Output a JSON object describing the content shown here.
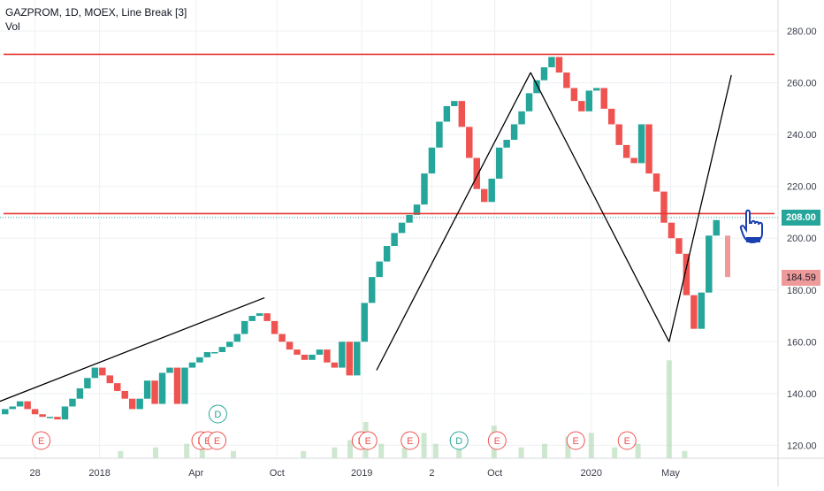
{
  "title": "GAZPROM, 1D, MOEX, Line Break [3]",
  "volume_label": "Vol",
  "price_tags": {
    "last": "208.00",
    "current": "184.59"
  },
  "colors": {
    "up": "#26a69a",
    "down": "#ef5350",
    "level": "#e53935",
    "trend": "#000000",
    "grid": "#eef0f3"
  },
  "chart_data": {
    "type": "line_break",
    "title": "GAZPROM, 1D, MOEX, Line Break [3]",
    "y_ticks": [
      120,
      140,
      160,
      180,
      200,
      220,
      240,
      260,
      280
    ],
    "y_tick_labels": [
      "120.00",
      "140.00",
      "160.00",
      "180.00",
      "200.00",
      "220.00",
      "240.00",
      "260.00",
      "280.00"
    ],
    "ylim": [
      115,
      292
    ],
    "x_tick_labels": [
      "28",
      "2018",
      "Apr",
      "Oct",
      "2019",
      "2",
      "Oct",
      "2020",
      "May"
    ],
    "x_ticks": [
      0.045,
      0.128,
      0.252,
      0.356,
      0.465,
      0.555,
      0.636,
      0.76,
      0.862
    ],
    "bricks": [
      [
        132,
        134
      ],
      [
        134,
        135
      ],
      [
        135,
        137
      ],
      [
        137,
        134
      ],
      [
        134,
        132
      ],
      [
        132,
        131
      ],
      [
        131,
        131
      ],
      [
        131,
        130
      ],
      [
        130,
        135
      ],
      [
        135,
        138
      ],
      [
        138,
        142
      ],
      [
        142,
        146
      ],
      [
        146,
        150
      ],
      [
        150,
        147
      ],
      [
        147,
        144
      ],
      [
        144,
        141
      ],
      [
        141,
        138
      ],
      [
        138,
        134
      ],
      [
        134,
        138
      ],
      [
        138,
        145
      ],
      [
        145,
        136
      ],
      [
        136,
        148
      ],
      [
        148,
        150
      ],
      [
        150,
        136
      ],
      [
        136,
        150
      ],
      [
        150,
        152
      ],
      [
        152,
        154
      ],
      [
        154,
        156
      ],
      [
        156,
        156
      ],
      [
        156,
        158
      ],
      [
        158,
        160
      ],
      [
        160,
        163
      ],
      [
        163,
        168
      ],
      [
        168,
        170
      ],
      [
        170,
        171
      ],
      [
        171,
        168
      ],
      [
        168,
        163
      ],
      [
        163,
        160
      ],
      [
        160,
        157
      ],
      [
        157,
        155
      ],
      [
        155,
        153
      ],
      [
        153,
        155
      ],
      [
        155,
        157
      ],
      [
        157,
        152
      ],
      [
        152,
        150
      ],
      [
        150,
        160
      ],
      [
        160,
        147
      ],
      [
        147,
        160
      ],
      [
        160,
        175
      ],
      [
        175,
        185
      ],
      [
        185,
        191
      ],
      [
        191,
        197
      ],
      [
        197,
        202
      ],
      [
        202,
        206
      ],
      [
        206,
        209
      ],
      [
        209,
        213
      ],
      [
        213,
        225
      ],
      [
        225,
        235
      ],
      [
        235,
        245
      ],
      [
        245,
        251
      ],
      [
        251,
        253
      ],
      [
        253,
        243
      ],
      [
        243,
        231
      ],
      [
        231,
        219
      ],
      [
        219,
        214
      ],
      [
        214,
        223
      ],
      [
        223,
        235
      ],
      [
        235,
        238
      ],
      [
        238,
        244
      ],
      [
        244,
        249
      ],
      [
        249,
        256
      ],
      [
        256,
        261
      ],
      [
        261,
        266
      ],
      [
        266,
        270
      ],
      [
        270,
        264
      ],
      [
        264,
        258
      ],
      [
        258,
        253
      ],
      [
        253,
        249
      ],
      [
        249,
        257
      ],
      [
        257,
        258
      ],
      [
        258,
        250
      ],
      [
        250,
        244
      ],
      [
        244,
        236
      ],
      [
        236,
        231
      ],
      [
        231,
        229
      ],
      [
        229,
        244
      ],
      [
        244,
        225
      ],
      [
        225,
        218
      ],
      [
        218,
        206
      ],
      [
        206,
        200
      ],
      [
        200,
        194
      ],
      [
        194,
        178
      ],
      [
        178,
        165
      ],
      [
        165,
        179
      ],
      [
        179,
        201
      ],
      [
        201,
        207
      ]
    ],
    "live_bar": [
      201,
      185
    ],
    "levels": [
      271,
      209.5
    ],
    "current_price": 208.0,
    "trend_lines": [
      [
        [
          0.0,
          137
        ],
        [
          0.34,
          177
        ]
      ],
      [
        [
          0.484,
          149
        ],
        [
          0.682,
          264
        ]
      ],
      [
        [
          0.682,
          264
        ],
        [
          0.86,
          160
        ]
      ],
      [
        [
          0.86,
          160
        ],
        [
          0.94,
          263
        ]
      ]
    ],
    "volume": [
      [
        0.155,
        2
      ],
      [
        0.2,
        3
      ],
      [
        0.24,
        4
      ],
      [
        0.26,
        3
      ],
      [
        0.3,
        2
      ],
      [
        0.39,
        2
      ],
      [
        0.43,
        3
      ],
      [
        0.45,
        5
      ],
      [
        0.47,
        10
      ],
      [
        0.49,
        4
      ],
      [
        0.52,
        3
      ],
      [
        0.545,
        7
      ],
      [
        0.56,
        4
      ],
      [
        0.59,
        3
      ],
      [
        0.635,
        9
      ],
      [
        0.67,
        3
      ],
      [
        0.7,
        4
      ],
      [
        0.73,
        6
      ],
      [
        0.76,
        7
      ],
      [
        0.79,
        3
      ],
      [
        0.82,
        4
      ],
      [
        0.86,
        27
      ],
      [
        0.88,
        2
      ]
    ],
    "events": [
      {
        "label": "E",
        "x": 0.053
      },
      {
        "label": "E",
        "x": 0.258
      },
      {
        "label": "E",
        "x": 0.267
      },
      {
        "label": "E",
        "x": 0.279
      },
      {
        "label": "D",
        "x": 0.28,
        "row": 1
      },
      {
        "label": "E",
        "x": 0.464
      },
      {
        "label": "E",
        "x": 0.473
      },
      {
        "label": "E",
        "x": 0.527
      },
      {
        "label": "D",
        "x": 0.59
      },
      {
        "label": "E",
        "x": 0.639
      },
      {
        "label": "E",
        "x": 0.74
      },
      {
        "label": "E",
        "x": 0.806
      }
    ]
  }
}
